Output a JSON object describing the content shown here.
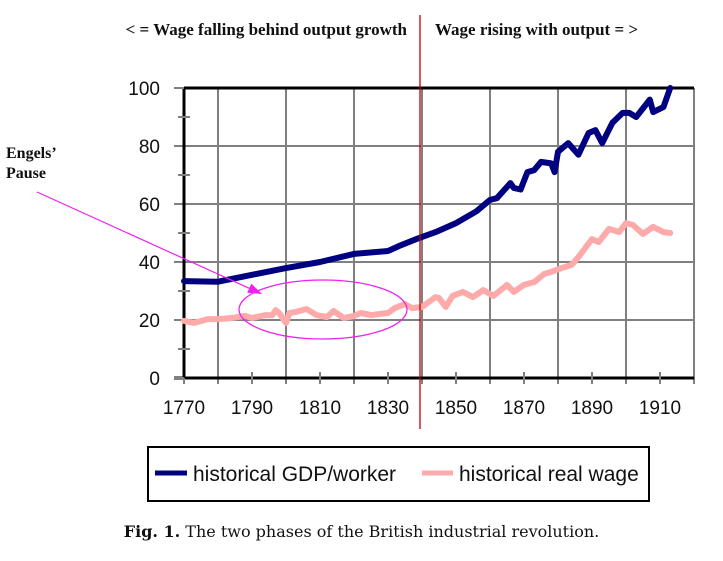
{
  "chart_data": {
    "type": "line",
    "title": "",
    "xlabel": "",
    "ylabel": "",
    "xlim": [
      1770,
      1920
    ],
    "ylim": [
      0,
      100
    ],
    "x_ticks": [
      1770,
      1790,
      1810,
      1830,
      1850,
      1870,
      1890,
      1910
    ],
    "y_ticks": [
      0,
      20,
      40,
      60,
      80,
      100
    ],
    "grid": true,
    "legend_position": "bottom",
    "series": [
      {
        "name": "historical GDP/worker",
        "color": "#000080",
        "points": [
          [
            1770,
            33.4
          ],
          [
            1780,
            33.2
          ],
          [
            1790,
            35.6
          ],
          [
            1800,
            37.9
          ],
          [
            1810,
            40.0
          ],
          [
            1820,
            42.8
          ],
          [
            1830,
            43.8
          ],
          [
            1834,
            45.9
          ],
          [
            1839,
            48.2
          ],
          [
            1844,
            50.3
          ],
          [
            1850,
            53.4
          ],
          [
            1856,
            57.5
          ],
          [
            1860,
            61.4
          ],
          [
            1862,
            62.0
          ],
          [
            1866,
            67.2
          ],
          [
            1867,
            65.5
          ],
          [
            1869,
            65.0
          ],
          [
            1871,
            71.0
          ],
          [
            1873,
            71.7
          ],
          [
            1875,
            74.5
          ],
          [
            1878,
            74.0
          ],
          [
            1879,
            71.0
          ],
          [
            1880,
            78.0
          ],
          [
            1883,
            81.0
          ],
          [
            1886,
            77.0
          ],
          [
            1889,
            84.5
          ],
          [
            1891,
            85.5
          ],
          [
            1893,
            81.0
          ],
          [
            1896,
            88.0
          ],
          [
            1899,
            91.4
          ],
          [
            1901,
            91.4
          ],
          [
            1903,
            90.0
          ],
          [
            1907,
            96.0
          ],
          [
            1908,
            91.7
          ],
          [
            1911,
            93.4
          ],
          [
            1913,
            100.0
          ]
        ]
      },
      {
        "name": "historical real wage",
        "color": "#ffaaaa",
        "points": [
          [
            1770,
            19.7
          ],
          [
            1773,
            19.0
          ],
          [
            1777,
            20.3
          ],
          [
            1780,
            20.3
          ],
          [
            1784,
            20.7
          ],
          [
            1788,
            21.4
          ],
          [
            1790,
            20.7
          ],
          [
            1794,
            21.7
          ],
          [
            1796,
            21.7
          ],
          [
            1797,
            23.4
          ],
          [
            1798,
            22.4
          ],
          [
            1800,
            19.0
          ],
          [
            1801,
            22.4
          ],
          [
            1803,
            22.8
          ],
          [
            1806,
            23.8
          ],
          [
            1809,
            21.7
          ],
          [
            1812,
            21.0
          ],
          [
            1814,
            23.1
          ],
          [
            1817,
            20.7
          ],
          [
            1820,
            21.4
          ],
          [
            1822,
            22.4
          ],
          [
            1825,
            21.7
          ],
          [
            1827,
            22.0
          ],
          [
            1830,
            22.4
          ],
          [
            1832,
            24.1
          ],
          [
            1835,
            25.5
          ],
          [
            1837,
            24.1
          ],
          [
            1840,
            24.5
          ],
          [
            1842,
            26.2
          ],
          [
            1844,
            27.9
          ],
          [
            1845,
            27.6
          ],
          [
            1847,
            24.5
          ],
          [
            1849,
            28.3
          ],
          [
            1852,
            29.7
          ],
          [
            1855,
            27.9
          ],
          [
            1858,
            30.3
          ],
          [
            1861,
            28.3
          ],
          [
            1865,
            32.1
          ],
          [
            1867,
            29.7
          ],
          [
            1870,
            32.1
          ],
          [
            1873,
            33.1
          ],
          [
            1876,
            35.9
          ],
          [
            1878,
            36.6
          ],
          [
            1881,
            37.9
          ],
          [
            1884,
            39.0
          ],
          [
            1886,
            41.7
          ],
          [
            1890,
            47.9
          ],
          [
            1892,
            46.9
          ],
          [
            1895,
            51.4
          ],
          [
            1898,
            50.3
          ],
          [
            1900,
            53.4
          ],
          [
            1902,
            52.8
          ],
          [
            1905,
            49.7
          ],
          [
            1908,
            52.1
          ],
          [
            1911,
            50.3
          ],
          [
            1913,
            50.0
          ]
        ]
      }
    ],
    "phase_divider_year": 1840,
    "phase_divider_color": "#c00000",
    "annotations": {
      "left_phase": "< = Wage falling behind output growth",
      "right_phase": "Wage rising with output = >",
      "engels_line1": "Engels’",
      "engels_line2": "Pause",
      "engels_color": "#ee22ee",
      "engels_period": [
        1790,
        1840
      ]
    }
  },
  "caption": {
    "label": "Fig. 1.",
    "text": " The two phases of the British industrial revolution."
  }
}
